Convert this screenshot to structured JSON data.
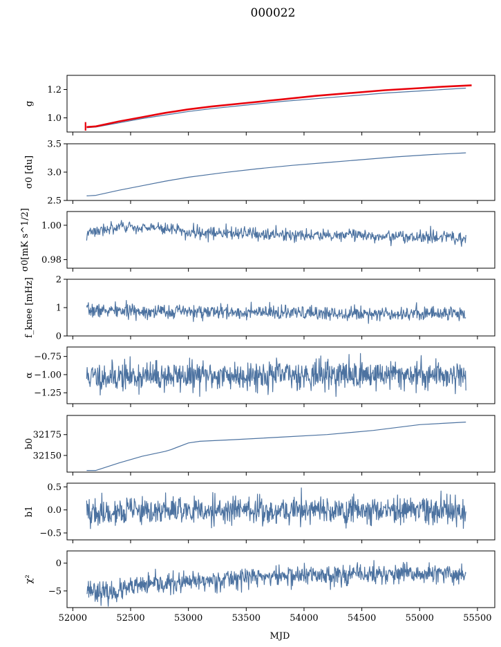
{
  "figure_title": "000022",
  "colors": {
    "series": "#4c72a0",
    "overlay": "#e8000b",
    "axes": "#000000"
  },
  "chart_data": {
    "type": "line",
    "title": "000022",
    "xlabel": "MJD",
    "xlim": [
      51950,
      55650
    ],
    "x_tick_labels": [
      "52000",
      "52500",
      "53000",
      "53500",
      "54000",
      "54500",
      "55000",
      "55500"
    ],
    "x_ticks": [
      52000,
      52500,
      53000,
      53500,
      54000,
      54500,
      55000,
      55500
    ],
    "x_range_data": [
      52120,
      55400
    ],
    "grid": false,
    "panels": [
      {
        "ylabel": "g",
        "ylim": [
          0.9,
          1.3
        ],
        "yticks": [
          1.0,
          1.2
        ],
        "ytick_labels": [
          "1.0",
          "1.2"
        ],
        "series": [
          {
            "style": "line",
            "color": "#4c72a0",
            "x": [
              52120,
              52200,
              52400,
              52600,
              52800,
              53000,
              53200,
              53500,
              53800,
              54100,
              54400,
              54700,
              55000,
              55200,
              55400
            ],
            "y": [
              0.93,
              0.935,
              0.965,
              0.995,
              1.02,
              1.045,
              1.065,
              1.09,
              1.115,
              1.135,
              1.155,
              1.175,
              1.19,
              1.2,
              1.21
            ]
          },
          {
            "style": "thick",
            "color": "#e8000b",
            "x": [
              52120,
              52200,
              52400,
              52600,
              52800,
              53000,
              53200,
              53500,
              53800,
              54100,
              54400,
              54700,
              55000,
              55200,
              55450
            ],
            "y": [
              0.935,
              0.94,
              0.975,
              1.005,
              1.035,
              1.06,
              1.08,
              1.105,
              1.13,
              1.155,
              1.175,
              1.195,
              1.21,
              1.22,
              1.23
            ]
          }
        ],
        "errorbar": {
          "x": 52110,
          "y": 0.94,
          "yerr": 0.03
        }
      },
      {
        "ylabel": "σ0 [du]",
        "ylim": [
          2.5,
          3.5
        ],
        "yticks": [
          2.5,
          3.0,
          3.5
        ],
        "ytick_labels": [
          "2.5",
          "3.0",
          "3.5"
        ],
        "series": [
          {
            "style": "line",
            "color": "#4c72a0",
            "x": [
              52120,
              52200,
              52400,
              52600,
              52800,
              53000,
              53300,
              53600,
              53900,
              54200,
              54500,
              54800,
              55100,
              55400
            ],
            "y": [
              2.58,
              2.59,
              2.68,
              2.76,
              2.84,
              2.91,
              2.99,
              3.06,
              3.12,
              3.17,
              3.22,
              3.27,
              3.31,
              3.34
            ]
          }
        ]
      },
      {
        "ylabel": "σ0[mK s^1/2]",
        "ylim": [
          0.975,
          1.008
        ],
        "yticks": [
          0.98,
          1.0
        ],
        "ytick_labels": [
          "0.98",
          "1.00"
        ],
        "series": [
          {
            "style": "noise",
            "color": "#4c72a0",
            "seed": 3,
            "n": 700,
            "noise": 0.0018,
            "x": [
              52120,
              52150,
              52500,
              52800,
              53000,
              53500,
              54000,
              54500,
              55000,
              55200,
              55400
            ],
            "y": [
              0.994,
              0.997,
              0.999,
              0.998,
              0.996,
              0.995,
              0.994,
              0.994,
              0.993,
              0.993,
              0.992
            ]
          }
        ]
      },
      {
        "ylabel": "f_knee [mHz]",
        "ylim": [
          0,
          2
        ],
        "yticks": [
          0,
          1,
          2
        ],
        "ytick_labels": [
          "0",
          "1",
          "2"
        ],
        "series": [
          {
            "style": "noise",
            "color": "#4c72a0",
            "seed": 7,
            "n": 900,
            "noise": 0.12,
            "x": [
              52120,
              53000,
              54000,
              55400
            ],
            "y": [
              0.9,
              0.85,
              0.8,
              0.8
            ]
          }
        ]
      },
      {
        "ylabel": "α",
        "ylim": [
          -1.4,
          -0.62
        ],
        "yticks": [
          -1.25,
          -1.0,
          -0.75
        ],
        "ytick_labels": [
          "−1.25",
          "−1.00",
          "−0.75"
        ],
        "series": [
          {
            "style": "noise",
            "color": "#4c72a0",
            "seed": 11,
            "n": 900,
            "noise": 0.1,
            "x": [
              52120,
              53000,
              54000,
              55400
            ],
            "y": [
              -1.03,
              -1.02,
              -1.0,
              -1.0
            ]
          }
        ]
      },
      {
        "ylabel": "b0",
        "ylim": [
          32130,
          32198
        ],
        "yticks": [
          32150,
          32175
        ],
        "ytick_labels": [
          "32150",
          "32175"
        ],
        "series": [
          {
            "style": "line",
            "color": "#4c72a0",
            "x": [
              52120,
              52200,
              52400,
              52600,
              52800,
              52850,
              53000,
              53100,
              53400,
              53800,
              54200,
              54600,
              55000,
              55400
            ],
            "y": [
              32132,
              32132,
              32141,
              32149,
              32155,
              32157,
              32165,
              32167,
              32169,
              32172,
              32175,
              32180,
              32187,
              32190
            ]
          }
        ]
      },
      {
        "ylabel": "b1",
        "ylim": [
          -0.65,
          0.58
        ],
        "yticks": [
          -0.5,
          0.0,
          0.5
        ],
        "ytick_labels": [
          "−0.5",
          "0.0",
          "0.5"
        ],
        "series": [
          {
            "style": "noise",
            "color": "#4c72a0",
            "seed": 19,
            "n": 900,
            "noise": 0.15,
            "x": [
              52120,
              53000,
              54000,
              55400
            ],
            "y": [
              -0.05,
              -0.02,
              0.0,
              -0.02
            ]
          }
        ]
      },
      {
        "ylabel": "χ²",
        "ylim": [
          -8,
          2.2
        ],
        "yticks": [
          -5,
          0
        ],
        "ytick_labels": [
          "−5",
          "0"
        ],
        "series": [
          {
            "style": "noise",
            "color": "#4c72a0",
            "seed": 23,
            "n": 900,
            "noise": 0.9,
            "x": [
              52120,
              52300,
              52600,
              53000,
              53500,
              54000,
              54500,
              55000,
              55400
            ],
            "y": [
              -4.5,
              -5.5,
              -4.0,
              -3.5,
              -2.5,
              -2.2,
              -2.0,
              -2.0,
              -2.0
            ]
          }
        ]
      }
    ]
  }
}
